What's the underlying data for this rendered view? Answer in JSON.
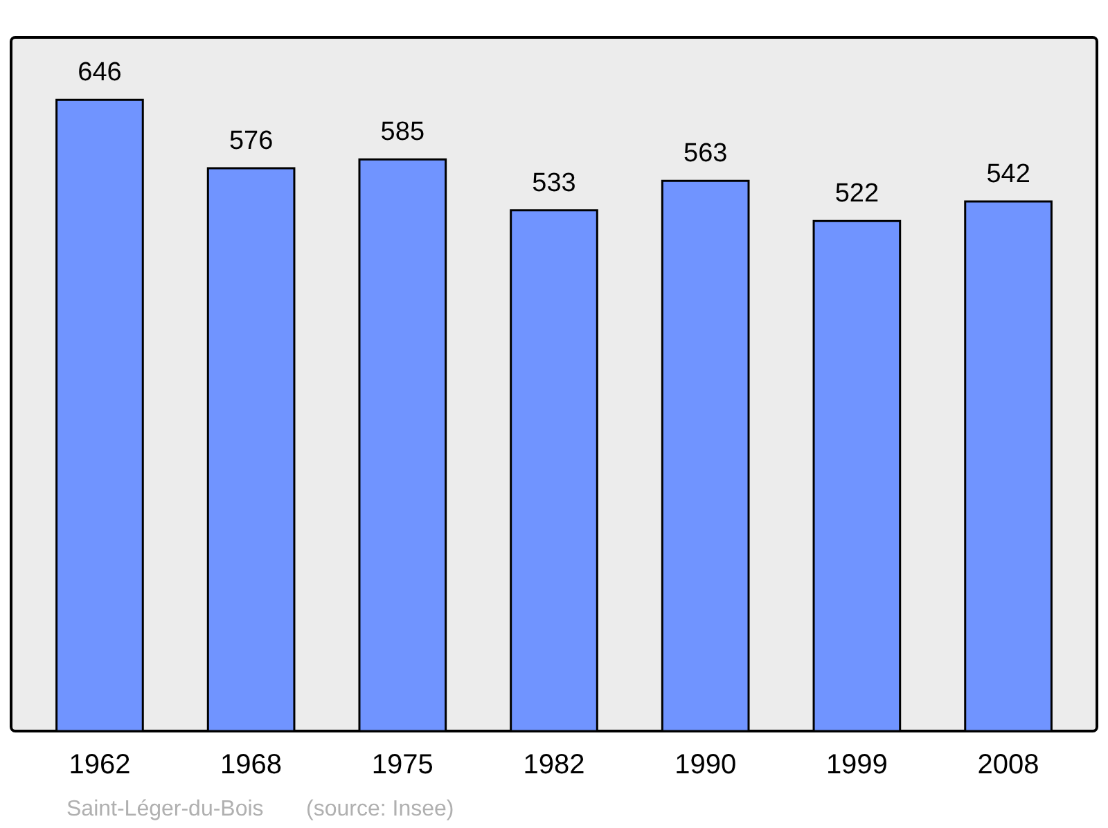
{
  "chart_data": {
    "type": "bar",
    "categories": [
      "1962",
      "1968",
      "1975",
      "1982",
      "1990",
      "1999",
      "2008"
    ],
    "values": [
      646,
      576,
      585,
      533,
      563,
      522,
      542
    ],
    "color": "#7094ff",
    "data_labels": true,
    "grid": false,
    "annotations": [
      "Saint-Léger-du-Bois",
      "(source: Insee)"
    ]
  }
}
